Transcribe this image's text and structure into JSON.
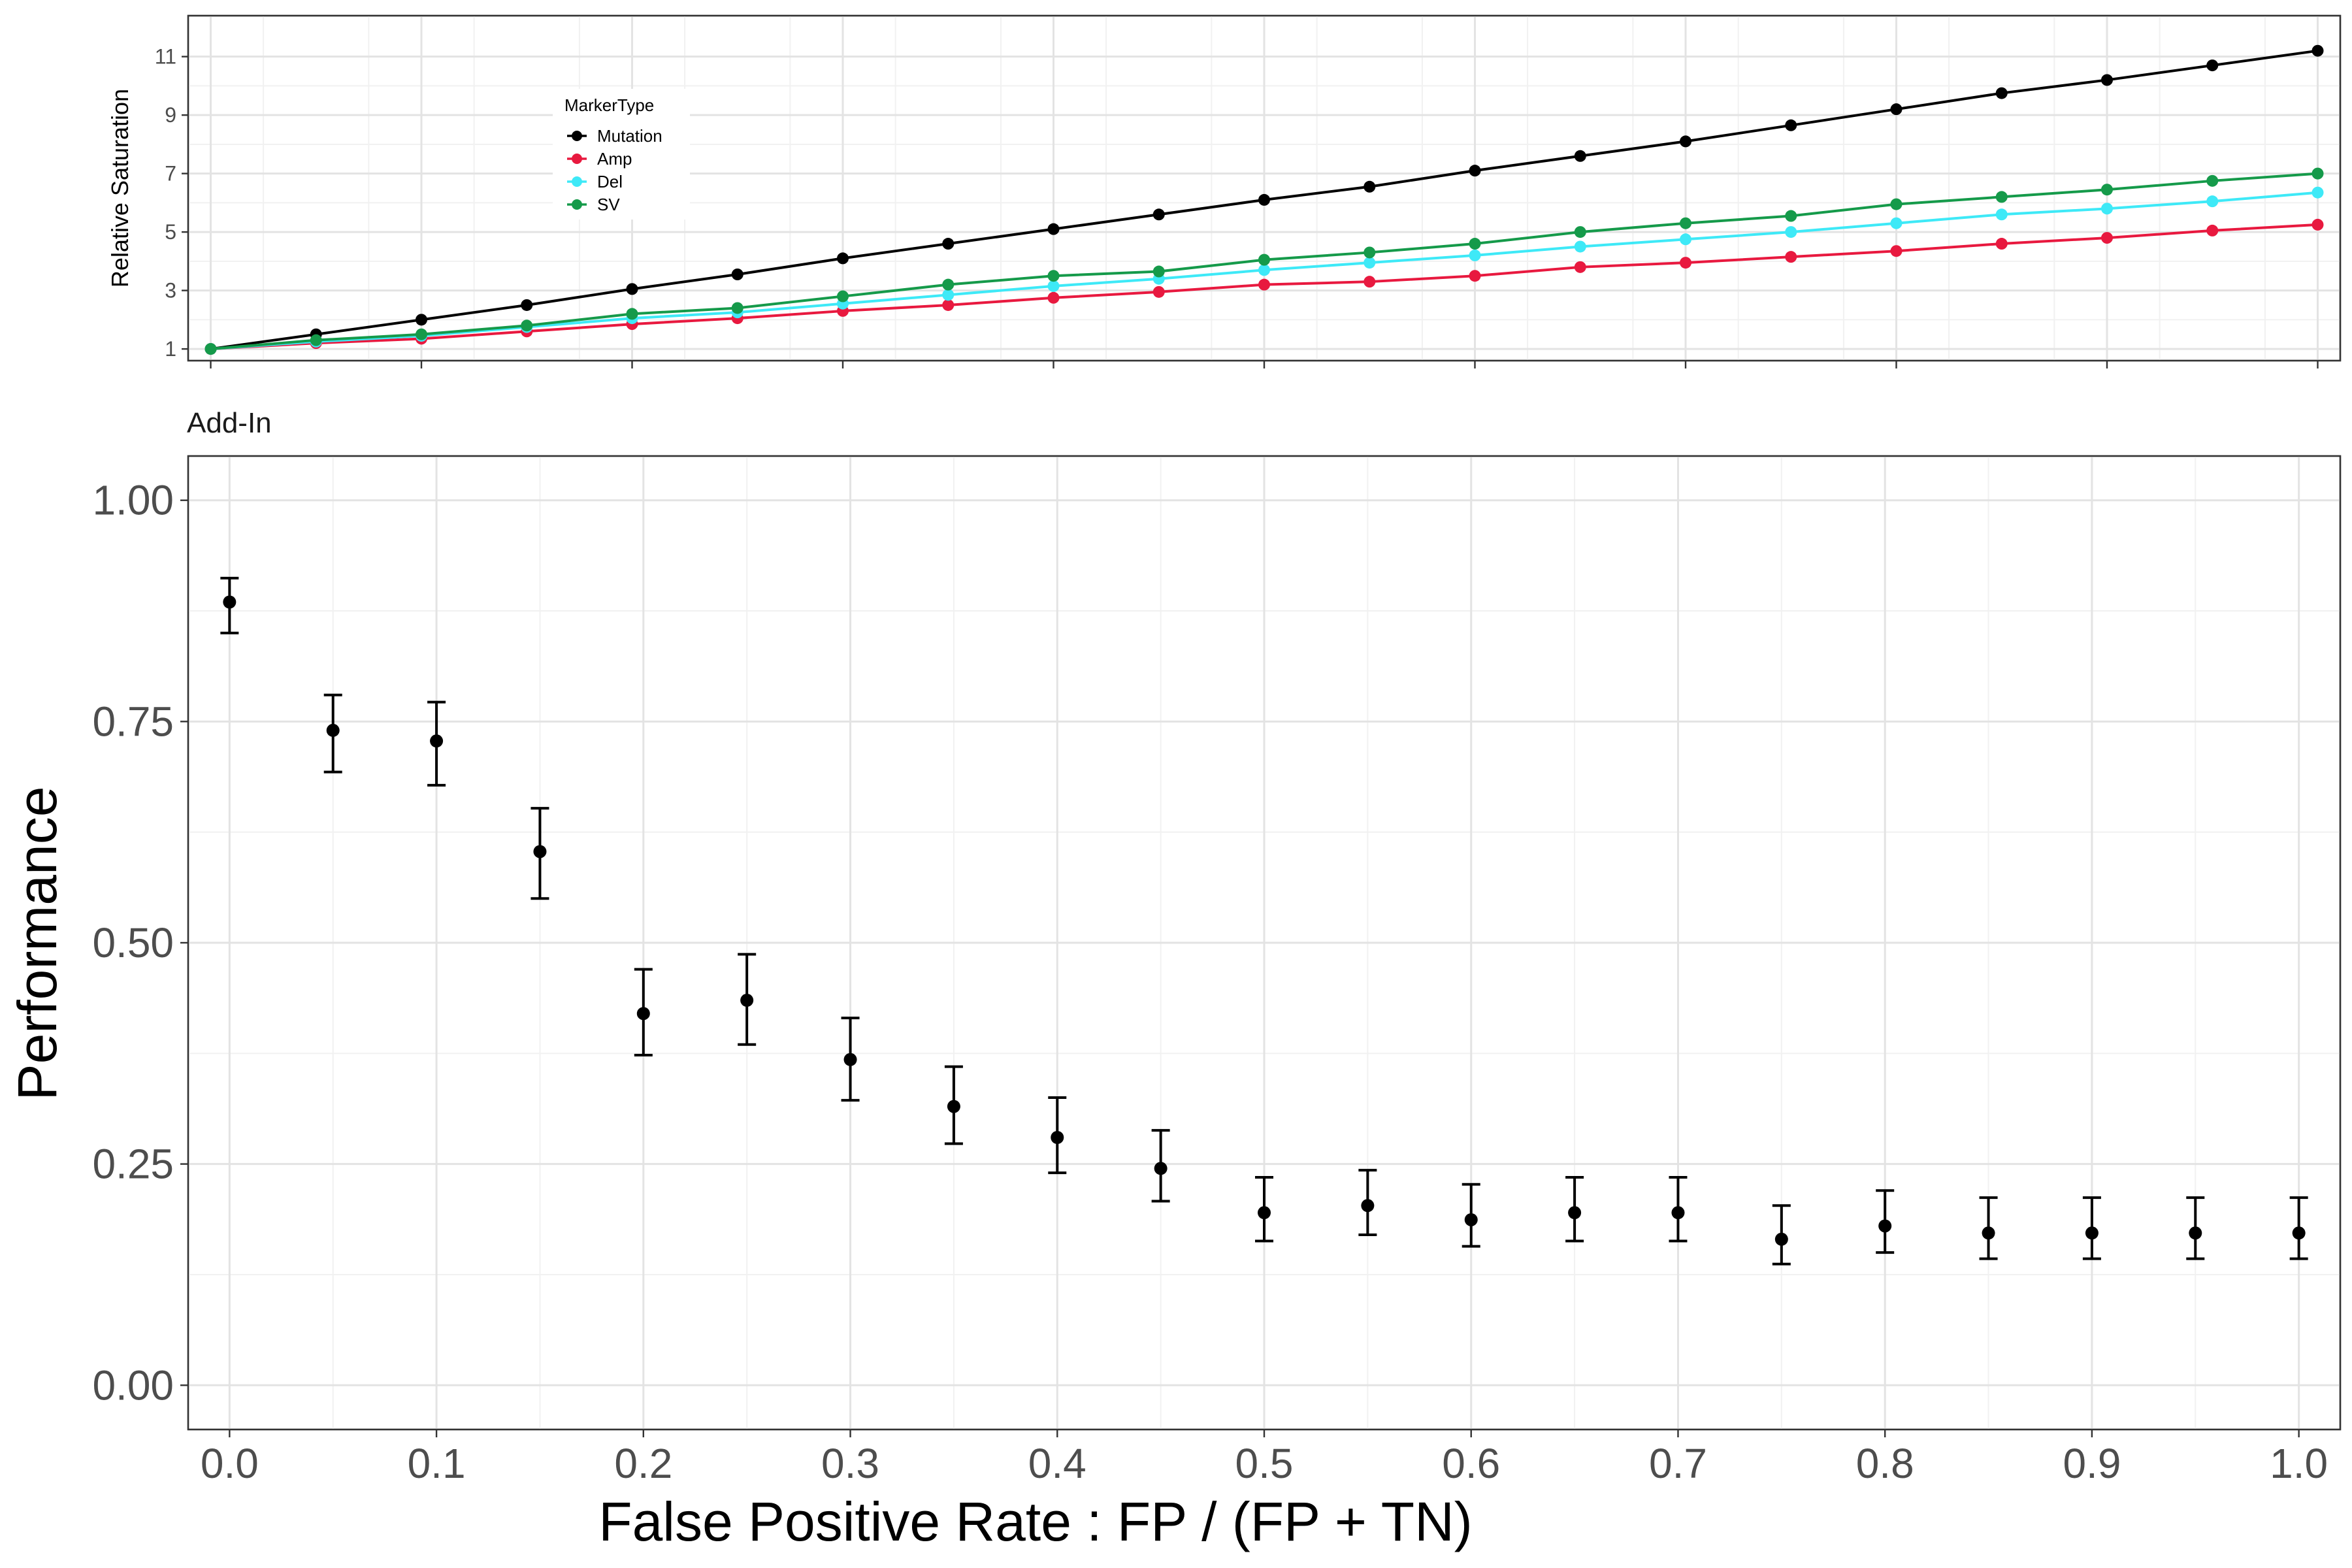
{
  "top_chart": {
    "type": "line",
    "ylabel": "Relative Saturation",
    "yticks": [
      1,
      3,
      5,
      7,
      9,
      11
    ],
    "ylim": [
      0.6,
      12.4
    ],
    "xlim": [
      -0.0107,
      1.0107
    ],
    "grid": true,
    "legend": {
      "title": "MarkerType",
      "placement": "top-left (inside panel)"
    },
    "colors": {
      "Mutation": "#000000",
      "Amp": "#e8193f",
      "Del": "#3ee9f7",
      "SV": "#159a4a"
    },
    "x": [
      0,
      0.05,
      0.1,
      0.15,
      0.2,
      0.25,
      0.3,
      0.35,
      0.4,
      0.45,
      0.5,
      0.55,
      0.6,
      0.65,
      0.7,
      0.75,
      0.8,
      0.85,
      0.9,
      0.95,
      1.0
    ],
    "series": [
      {
        "name": "Mutation",
        "values": [
          1.0,
          1.5,
          2.0,
          2.5,
          3.05,
          3.55,
          4.1,
          4.6,
          5.1,
          5.6,
          6.1,
          6.55,
          7.1,
          7.6,
          8.1,
          8.65,
          9.2,
          9.75,
          10.2,
          10.7,
          11.2
        ]
      },
      {
        "name": "Amp",
        "values": [
          1.0,
          1.2,
          1.35,
          1.6,
          1.85,
          2.05,
          2.3,
          2.5,
          2.75,
          2.95,
          3.2,
          3.3,
          3.5,
          3.8,
          3.95,
          4.15,
          4.35,
          4.6,
          4.8,
          5.05,
          5.25
        ]
      },
      {
        "name": "Del",
        "values": [
          1.0,
          1.25,
          1.45,
          1.75,
          2.05,
          2.25,
          2.55,
          2.85,
          3.15,
          3.4,
          3.7,
          3.95,
          4.2,
          4.5,
          4.75,
          5.0,
          5.3,
          5.6,
          5.8,
          6.05,
          6.35
        ]
      },
      {
        "name": "SV",
        "values": [
          1.0,
          1.3,
          1.5,
          1.8,
          2.2,
          2.4,
          2.8,
          3.2,
          3.5,
          3.65,
          4.05,
          4.3,
          4.6,
          5.0,
          5.3,
          5.55,
          5.95,
          6.2,
          6.45,
          6.75,
          7.0
        ]
      }
    ]
  },
  "bottom_chart": {
    "type": "scatter",
    "strip_title": "Add-In",
    "xlabel": "False Positive Rate : FP / (FP + TN)",
    "ylabel": "Performance",
    "xticks": [
      "0.0",
      "0.1",
      "0.2",
      "0.3",
      "0.4",
      "0.5",
      "0.6",
      "0.7",
      "0.8",
      "0.9",
      "1.0"
    ],
    "yticks": [
      "0.00",
      "0.25",
      "0.50",
      "0.75",
      "1.00"
    ],
    "xlim": [
      -0.02,
      1.02
    ],
    "ylim": [
      -0.05,
      1.05
    ],
    "grid": true,
    "color": "#000000",
    "x": [
      0,
      0.05,
      0.1,
      0.15,
      0.2,
      0.25,
      0.3,
      0.35,
      0.4,
      0.45,
      0.5,
      0.55,
      0.6,
      0.65,
      0.7,
      0.75,
      0.8,
      0.85,
      0.9,
      0.95,
      1.0
    ],
    "y": [
      0.885,
      0.74,
      0.728,
      0.603,
      0.42,
      0.435,
      0.368,
      0.315,
      0.28,
      0.245,
      0.195,
      0.203,
      0.187,
      0.195,
      0.195,
      0.165,
      0.18,
      0.172,
      0.172,
      0.172,
      0.172
    ],
    "ymin": [
      0.85,
      0.693,
      0.678,
      0.55,
      0.373,
      0.385,
      0.322,
      0.273,
      0.24,
      0.208,
      0.163,
      0.17,
      0.157,
      0.163,
      0.163,
      0.137,
      0.15,
      0.143,
      0.143,
      0.143,
      0.143
    ],
    "ymax": [
      0.912,
      0.78,
      0.772,
      0.652,
      0.47,
      0.487,
      0.415,
      0.36,
      0.325,
      0.288,
      0.235,
      0.243,
      0.227,
      0.235,
      0.235,
      0.203,
      0.22,
      0.212,
      0.212,
      0.212,
      0.212
    ]
  }
}
